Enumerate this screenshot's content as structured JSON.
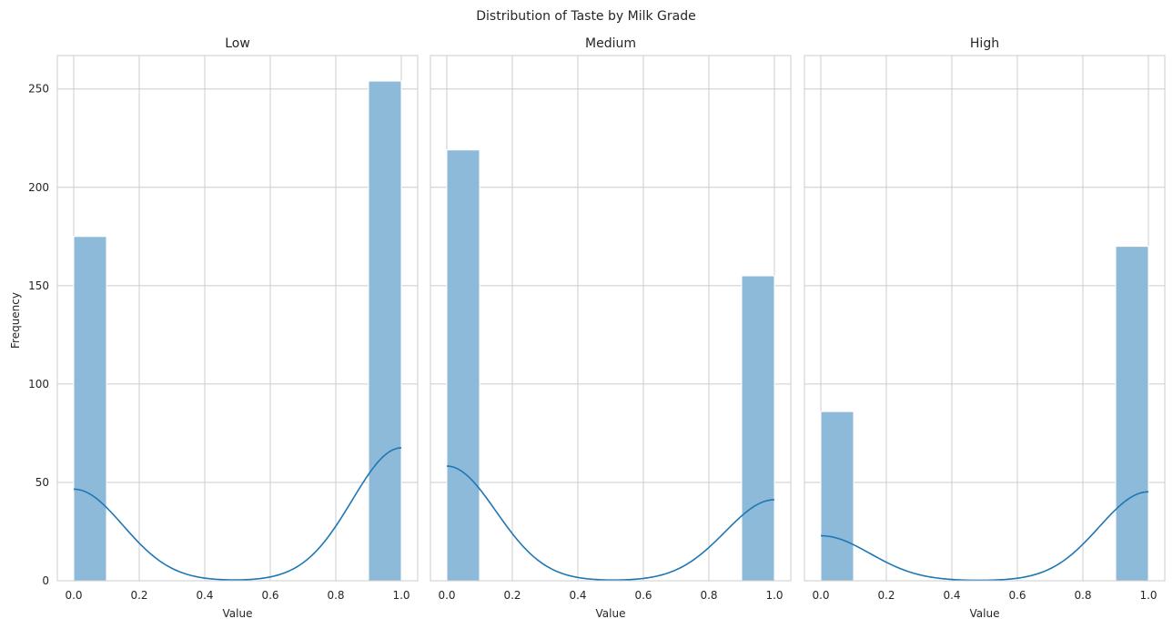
{
  "figure": {
    "title": "Distribution of Taste by Milk Grade",
    "shared_ylabel": "Frequency"
  },
  "colors": {
    "bar_fill": "#8ebad9",
    "bar_edge": "#ffffff",
    "kde_line": "#1f77b4",
    "grid": "#cccccc",
    "spine": "#cccccc",
    "background": "#ffffff"
  },
  "chart_data": [
    {
      "type": "bar",
      "title": "Low",
      "xlabel": "Value",
      "ylabel": "Frequency",
      "xlim": [
        -0.05,
        1.05
      ],
      "ylim": [
        0,
        267
      ],
      "xticks": [
        0.0,
        0.2,
        0.4,
        0.6,
        0.8,
        1.0
      ],
      "xtick_labels": [
        "0.0",
        "0.2",
        "0.4",
        "0.6",
        "0.8",
        "1.0"
      ],
      "yticks": [
        0,
        50,
        100,
        150,
        200,
        250
      ],
      "ytick_labels": [
        "0",
        "50",
        "100",
        "150",
        "200",
        "250"
      ],
      "grid": true,
      "bins": [
        {
          "x0": 0.0,
          "x1": 0.1,
          "count": 175
        },
        {
          "x0": 0.9,
          "x1": 1.0,
          "count": 254
        }
      ],
      "kde": {
        "p1": 0.592,
        "sigma": 0.15,
        "scale": 0.1
      }
    },
    {
      "type": "bar",
      "title": "Medium",
      "xlabel": "Value",
      "ylabel": "",
      "xlim": [
        -0.05,
        1.05
      ],
      "ylim": [
        0,
        267
      ],
      "xticks": [
        0.0,
        0.2,
        0.4,
        0.6,
        0.8,
        1.0
      ],
      "xtick_labels": [
        "0.0",
        "0.2",
        "0.4",
        "0.6",
        "0.8",
        "1.0"
      ],
      "yticks": [
        0,
        50,
        100,
        150,
        200,
        250
      ],
      "ytick_labels": [],
      "grid": true,
      "bins": [
        {
          "x0": 0.0,
          "x1": 0.1,
          "count": 219
        },
        {
          "x0": 0.9,
          "x1": 1.0,
          "count": 155
        }
      ],
      "kde": {
        "p1": 0.414,
        "sigma": 0.15,
        "scale": 0.1
      }
    },
    {
      "type": "bar",
      "title": "High",
      "xlabel": "Value",
      "ylabel": "",
      "xlim": [
        -0.05,
        1.05
      ],
      "ylim": [
        0,
        267
      ],
      "xticks": [
        0.0,
        0.2,
        0.4,
        0.6,
        0.8,
        1.0
      ],
      "xtick_labels": [
        "0.0",
        "0.2",
        "0.4",
        "0.6",
        "0.8",
        "1.0"
      ],
      "yticks": [
        0,
        50,
        100,
        150,
        200,
        250
      ],
      "ytick_labels": [],
      "grid": true,
      "bins": [
        {
          "x0": 0.0,
          "x1": 0.1,
          "count": 86
        },
        {
          "x0": 0.9,
          "x1": 1.0,
          "count": 170
        }
      ],
      "kde": {
        "p1": 0.664,
        "sigma": 0.15,
        "scale": 0.1
      }
    }
  ]
}
